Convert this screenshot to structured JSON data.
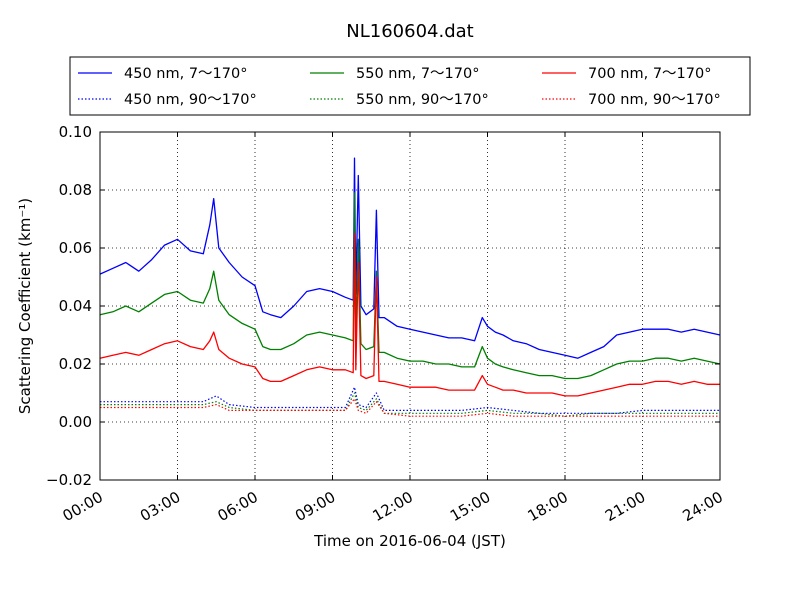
{
  "chart_data": {
    "type": "line",
    "title": "NL160604.dat",
    "xlabel": "Time on 2016-06-04 (JST)",
    "ylabel": "Scattering Coefficient (km⁻¹)",
    "xlim": [
      0,
      24
    ],
    "ylim": [
      -0.02,
      0.1
    ],
    "x_ticks": [
      0,
      3,
      6,
      9,
      12,
      15,
      18,
      21,
      24
    ],
    "x_tick_labels": [
      "00:00",
      "03:00",
      "06:00",
      "09:00",
      "12:00",
      "15:00",
      "18:00",
      "21:00",
      "24:00"
    ],
    "y_ticks": [
      -0.02,
      0.0,
      0.02,
      0.04,
      0.06,
      0.08,
      0.1
    ],
    "y_tick_labels": [
      "−0.02",
      "0.00",
      "0.02",
      "0.04",
      "0.06",
      "0.08",
      "0.10"
    ],
    "grid": true,
    "legend_placement": "above-plot",
    "series": [
      {
        "name": "450 nm, 7～170°",
        "color": "#0000ff",
        "style": "solid",
        "x": [
          0.0,
          0.5,
          1.0,
          1.5,
          2.0,
          2.5,
          3.0,
          3.5,
          4.0,
          4.25,
          4.4,
          4.6,
          5.0,
          5.5,
          6.0,
          6.3,
          6.6,
          7.0,
          7.5,
          8.0,
          8.5,
          9.0,
          9.5,
          9.8,
          9.85,
          9.9,
          10.0,
          10.1,
          10.3,
          10.6,
          10.7,
          10.8,
          11.0,
          11.5,
          12.0,
          12.5,
          13.0,
          13.5,
          14.0,
          14.5,
          14.8,
          15.0,
          15.3,
          15.6,
          16.0,
          16.5,
          17.0,
          17.5,
          18.0,
          18.5,
          19.0,
          19.5,
          20.0,
          20.5,
          21.0,
          21.5,
          22.0,
          22.5,
          23.0,
          23.5,
          24.0
        ],
        "y": [
          0.051,
          0.053,
          0.055,
          0.052,
          0.056,
          0.061,
          0.063,
          0.059,
          0.058,
          0.068,
          0.077,
          0.06,
          0.055,
          0.05,
          0.047,
          0.038,
          0.037,
          0.036,
          0.04,
          0.045,
          0.046,
          0.045,
          0.043,
          0.042,
          0.091,
          0.044,
          0.085,
          0.04,
          0.037,
          0.039,
          0.073,
          0.036,
          0.036,
          0.033,
          0.032,
          0.031,
          0.03,
          0.029,
          0.029,
          0.028,
          0.036,
          0.033,
          0.031,
          0.03,
          0.028,
          0.027,
          0.025,
          0.024,
          0.023,
          0.022,
          0.024,
          0.026,
          0.03,
          0.031,
          0.032,
          0.032,
          0.032,
          0.031,
          0.032,
          0.031,
          0.03
        ]
      },
      {
        "name": "450 nm, 90～170°",
        "color": "#0000ff",
        "style": "dotted",
        "x": [
          0.0,
          1.0,
          2.0,
          3.0,
          4.0,
          4.5,
          5.0,
          6.0,
          7.0,
          8.0,
          9.0,
          9.5,
          9.85,
          10.0,
          10.3,
          10.7,
          11.0,
          12.0,
          13.0,
          14.0,
          15.0,
          16.0,
          17.0,
          18.0,
          19.0,
          20.0,
          21.0,
          22.0,
          23.0,
          24.0
        ],
        "y": [
          0.007,
          0.007,
          0.007,
          0.007,
          0.007,
          0.009,
          0.006,
          0.005,
          0.005,
          0.005,
          0.005,
          0.005,
          0.012,
          0.006,
          0.005,
          0.01,
          0.004,
          0.004,
          0.004,
          0.004,
          0.005,
          0.004,
          0.003,
          0.003,
          0.003,
          0.003,
          0.004,
          0.004,
          0.004,
          0.004
        ]
      },
      {
        "name": "550 nm, 7～170°",
        "color": "#008000",
        "style": "solid",
        "x": [
          0.0,
          0.5,
          1.0,
          1.5,
          2.0,
          2.5,
          3.0,
          3.5,
          4.0,
          4.25,
          4.4,
          4.6,
          5.0,
          5.5,
          6.0,
          6.3,
          6.6,
          7.0,
          7.5,
          8.0,
          8.5,
          9.0,
          9.5,
          9.8,
          9.85,
          9.9,
          10.0,
          10.1,
          10.3,
          10.6,
          10.7,
          10.8,
          11.0,
          11.5,
          12.0,
          12.5,
          13.0,
          13.5,
          14.0,
          14.5,
          14.8,
          15.0,
          15.3,
          15.6,
          16.0,
          16.5,
          17.0,
          17.5,
          18.0,
          18.5,
          19.0,
          19.5,
          20.0,
          20.5,
          21.0,
          21.5,
          22.0,
          22.5,
          23.0,
          23.5,
          24.0
        ],
        "y": [
          0.037,
          0.038,
          0.04,
          0.038,
          0.041,
          0.044,
          0.045,
          0.042,
          0.041,
          0.046,
          0.052,
          0.042,
          0.037,
          0.034,
          0.032,
          0.026,
          0.025,
          0.025,
          0.027,
          0.03,
          0.031,
          0.03,
          0.029,
          0.028,
          0.079,
          0.03,
          0.063,
          0.027,
          0.025,
          0.026,
          0.052,
          0.024,
          0.024,
          0.022,
          0.021,
          0.021,
          0.02,
          0.02,
          0.019,
          0.019,
          0.026,
          0.022,
          0.02,
          0.019,
          0.018,
          0.017,
          0.016,
          0.016,
          0.015,
          0.015,
          0.016,
          0.018,
          0.02,
          0.021,
          0.021,
          0.022,
          0.022,
          0.021,
          0.022,
          0.021,
          0.02
        ]
      },
      {
        "name": "550 nm, 90～170°",
        "color": "#008000",
        "style": "dotted",
        "x": [
          0.0,
          1.0,
          2.0,
          3.0,
          4.0,
          4.5,
          5.0,
          6.0,
          7.0,
          8.0,
          9.0,
          9.5,
          9.85,
          10.0,
          10.3,
          10.7,
          11.0,
          12.0,
          13.0,
          14.0,
          15.0,
          16.0,
          17.0,
          18.0,
          19.0,
          20.0,
          21.0,
          22.0,
          23.0,
          24.0
        ],
        "y": [
          0.006,
          0.006,
          0.006,
          0.006,
          0.006,
          0.007,
          0.005,
          0.004,
          0.004,
          0.004,
          0.004,
          0.004,
          0.01,
          0.005,
          0.004,
          0.008,
          0.003,
          0.003,
          0.003,
          0.003,
          0.004,
          0.003,
          0.003,
          0.002,
          0.003,
          0.003,
          0.003,
          0.003,
          0.003,
          0.003
        ]
      },
      {
        "name": "700 nm, 7～170°",
        "color": "#ff0000",
        "style": "solid",
        "x": [
          0.0,
          0.5,
          1.0,
          1.5,
          2.0,
          2.5,
          3.0,
          3.5,
          4.0,
          4.25,
          4.4,
          4.6,
          5.0,
          5.5,
          6.0,
          6.3,
          6.6,
          7.0,
          7.5,
          8.0,
          8.5,
          9.0,
          9.5,
          9.8,
          9.85,
          9.9,
          10.0,
          10.1,
          10.3,
          10.6,
          10.7,
          10.8,
          11.0,
          11.5,
          12.0,
          12.5,
          13.0,
          13.5,
          14.0,
          14.5,
          14.8,
          15.0,
          15.3,
          15.6,
          16.0,
          16.5,
          17.0,
          17.5,
          18.0,
          18.5,
          19.0,
          19.5,
          20.0,
          20.5,
          21.0,
          21.5,
          22.0,
          22.5,
          23.0,
          23.5,
          24.0
        ],
        "y": [
          0.022,
          0.023,
          0.024,
          0.023,
          0.025,
          0.027,
          0.028,
          0.026,
          0.025,
          0.028,
          0.031,
          0.025,
          0.022,
          0.02,
          0.019,
          0.015,
          0.014,
          0.014,
          0.016,
          0.018,
          0.019,
          0.018,
          0.018,
          0.017,
          0.065,
          0.018,
          0.055,
          0.016,
          0.015,
          0.016,
          0.05,
          0.014,
          0.014,
          0.013,
          0.012,
          0.012,
          0.012,
          0.011,
          0.011,
          0.011,
          0.016,
          0.013,
          0.012,
          0.011,
          0.011,
          0.01,
          0.01,
          0.01,
          0.009,
          0.009,
          0.01,
          0.011,
          0.012,
          0.013,
          0.013,
          0.014,
          0.014,
          0.013,
          0.014,
          0.013,
          0.013
        ]
      },
      {
        "name": "700 nm, 90～170°",
        "color": "#ff0000",
        "style": "dotted",
        "x": [
          0.0,
          1.0,
          2.0,
          3.0,
          4.0,
          4.5,
          5.0,
          6.0,
          7.0,
          8.0,
          9.0,
          9.5,
          9.85,
          10.0,
          10.3,
          10.7,
          11.0,
          12.0,
          13.0,
          14.0,
          15.0,
          16.0,
          17.0,
          18.0,
          19.0,
          20.0,
          21.0,
          22.0,
          23.0,
          24.0
        ],
        "y": [
          0.005,
          0.005,
          0.005,
          0.005,
          0.005,
          0.006,
          0.004,
          0.004,
          0.004,
          0.004,
          0.004,
          0.004,
          0.008,
          0.004,
          0.003,
          0.007,
          0.003,
          0.002,
          0.002,
          0.002,
          0.003,
          0.002,
          0.002,
          0.002,
          0.002,
          0.002,
          0.002,
          0.002,
          0.002,
          0.002
        ]
      }
    ]
  }
}
